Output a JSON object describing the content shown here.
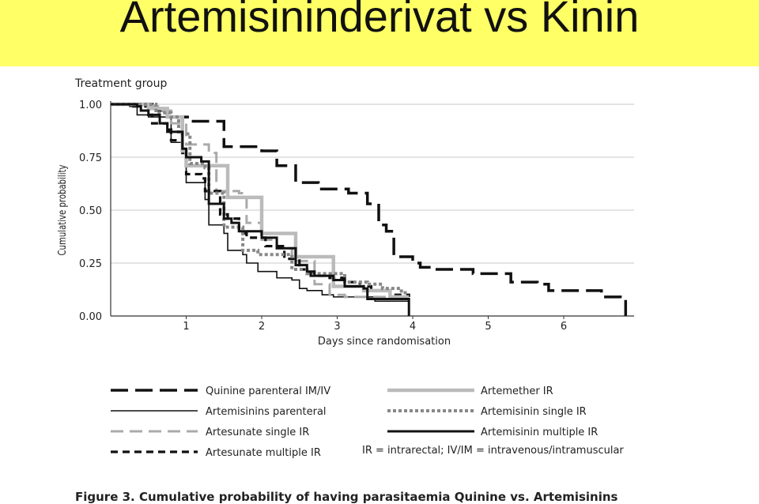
{
  "slide": {
    "title": "Artemisininderivat vs Kinin"
  },
  "chart_data": {
    "type": "line",
    "subtype": "step",
    "panel_label": "Treatment group",
    "ylabel": "Cumulative probability",
    "xlabel": "Days since randomisation",
    "xlim": [
      0,
      6.9
    ],
    "ylim": [
      0,
      1
    ],
    "x_ticks": [
      "1",
      "2",
      "3",
      "4",
      "5",
      "6"
    ],
    "y_ticks": [
      "0.00",
      "0.25",
      "0.50",
      "0.75",
      "1.00"
    ],
    "grid": "horizontal",
    "legend_position": "bottom",
    "series": [
      {
        "name": "Quinine parenteral IM/IV",
        "color": "#111111",
        "dash": "long-dash",
        "width": 3.5,
        "points": [
          [
            0,
            1
          ],
          [
            0.3,
            1
          ],
          [
            0.55,
            0.99
          ],
          [
            0.6,
            0.97
          ],
          [
            0.75,
            0.94
          ],
          [
            1.05,
            0.92
          ],
          [
            1.5,
            0.8
          ],
          [
            2.0,
            0.78
          ],
          [
            2.2,
            0.71
          ],
          [
            2.45,
            0.63
          ],
          [
            2.75,
            0.6
          ],
          [
            3.15,
            0.58
          ],
          [
            3.4,
            0.53
          ],
          [
            3.55,
            0.43
          ],
          [
            3.65,
            0.4
          ],
          [
            3.75,
            0.28
          ],
          [
            4.0,
            0.25
          ],
          [
            4.1,
            0.23
          ],
          [
            4.3,
            0.22
          ],
          [
            4.8,
            0.2
          ],
          [
            5.3,
            0.16
          ],
          [
            5.65,
            0.15
          ],
          [
            5.8,
            0.12
          ],
          [
            6.5,
            0.09
          ],
          [
            6.75,
            0.08
          ],
          [
            6.82,
            0.0
          ]
        ]
      },
      {
        "name": "Artemisinins parenteral",
        "color": "#111111",
        "dash": "solid",
        "width": 1.6,
        "points": [
          [
            0,
            1
          ],
          [
            0.25,
            0.99
          ],
          [
            0.35,
            0.95
          ],
          [
            0.5,
            0.94
          ],
          [
            0.8,
            0.82
          ],
          [
            0.95,
            0.78
          ],
          [
            1.0,
            0.63
          ],
          [
            1.25,
            0.55
          ],
          [
            1.3,
            0.43
          ],
          [
            1.5,
            0.39
          ],
          [
            1.55,
            0.31
          ],
          [
            1.75,
            0.29
          ],
          [
            1.8,
            0.25
          ],
          [
            1.95,
            0.21
          ],
          [
            2.2,
            0.18
          ],
          [
            2.4,
            0.17
          ],
          [
            2.5,
            0.13
          ],
          [
            2.6,
            0.12
          ],
          [
            2.8,
            0.1
          ],
          [
            2.95,
            0.09
          ],
          [
            3.5,
            0.07
          ],
          [
            3.95,
            0.07
          ],
          [
            3.95,
            0.0
          ]
        ]
      },
      {
        "name": "Artesunate single IR",
        "color": "#aaaaaa",
        "dash": "dash",
        "width": 3,
        "points": [
          [
            0,
            1
          ],
          [
            0.4,
            0.99
          ],
          [
            0.65,
            0.97
          ],
          [
            0.8,
            0.91
          ],
          [
            1.0,
            0.81
          ],
          [
            1.3,
            0.77
          ],
          [
            1.4,
            0.59
          ],
          [
            1.7,
            0.58
          ],
          [
            1.8,
            0.44
          ],
          [
            2.0,
            0.36
          ],
          [
            2.2,
            0.32
          ],
          [
            2.4,
            0.26
          ],
          [
            2.7,
            0.15
          ],
          [
            2.9,
            0.1
          ],
          [
            3.1,
            0.09
          ],
          [
            3.9,
            0.09
          ]
        ]
      },
      {
        "name": "Artesunate multiple IR",
        "color": "#111111",
        "dash": "short-dash",
        "width": 3.2,
        "points": [
          [
            0,
            1
          ],
          [
            0.3,
            0.99
          ],
          [
            0.5,
            0.95
          ],
          [
            0.55,
            0.91
          ],
          [
            0.75,
            0.88
          ],
          [
            0.8,
            0.83
          ],
          [
            0.95,
            0.77
          ],
          [
            1.0,
            0.67
          ],
          [
            1.2,
            0.65
          ],
          [
            1.25,
            0.59
          ],
          [
            1.45,
            0.48
          ],
          [
            1.55,
            0.46
          ],
          [
            1.7,
            0.39
          ],
          [
            1.8,
            0.37
          ],
          [
            2.0,
            0.37
          ],
          [
            2.05,
            0.33
          ],
          [
            2.3,
            0.27
          ],
          [
            2.5,
            0.22
          ],
          [
            2.65,
            0.19
          ],
          [
            2.9,
            0.18
          ],
          [
            3.1,
            0.16
          ],
          [
            3.3,
            0.14
          ],
          [
            3.45,
            0.12
          ],
          [
            3.7,
            0.1
          ],
          [
            3.95,
            0.09
          ]
        ]
      },
      {
        "name": "Artemether IR",
        "color": "#bbbbbb",
        "dash": "solid",
        "width": 4.5,
        "points": [
          [
            0,
            1
          ],
          [
            0.5,
            0.98
          ],
          [
            0.75,
            0.94
          ],
          [
            0.95,
            0.78
          ],
          [
            1.0,
            0.71
          ],
          [
            1.2,
            0.71
          ],
          [
            1.55,
            0.56
          ],
          [
            1.85,
            0.56
          ],
          [
            2.0,
            0.39
          ],
          [
            2.2,
            0.39
          ],
          [
            2.45,
            0.28
          ],
          [
            2.9,
            0.28
          ],
          [
            2.95,
            0.14
          ],
          [
            3.35,
            0.12
          ],
          [
            3.7,
            0.09
          ],
          [
            3.95,
            0.09
          ]
        ]
      },
      {
        "name": "Artemisinin single IR",
        "color": "#888888",
        "dash": "dotted",
        "width": 4,
        "points": [
          [
            0,
            1
          ],
          [
            0.6,
            0.96
          ],
          [
            0.8,
            0.94
          ],
          [
            0.9,
            0.86
          ],
          [
            1.05,
            0.72
          ],
          [
            1.25,
            0.7
          ],
          [
            1.3,
            0.58
          ],
          [
            1.5,
            0.42
          ],
          [
            1.75,
            0.31
          ],
          [
            1.95,
            0.29
          ],
          [
            2.4,
            0.22
          ],
          [
            2.6,
            0.2
          ],
          [
            3.1,
            0.16
          ],
          [
            3.4,
            0.15
          ],
          [
            3.6,
            0.13
          ],
          [
            3.85,
            0.11
          ],
          [
            3.95,
            0.11
          ]
        ]
      },
      {
        "name": "Artemisinin multiple IR",
        "color": "#111111",
        "dash": "solid",
        "width": 3,
        "points": [
          [
            0,
            1
          ],
          [
            0.35,
            0.99
          ],
          [
            0.4,
            0.97
          ],
          [
            0.5,
            0.95
          ],
          [
            0.65,
            0.91
          ],
          [
            0.75,
            0.87
          ],
          [
            0.95,
            0.79
          ],
          [
            1.0,
            0.75
          ],
          [
            1.2,
            0.73
          ],
          [
            1.3,
            0.53
          ],
          [
            1.5,
            0.46
          ],
          [
            1.6,
            0.44
          ],
          [
            1.7,
            0.4
          ],
          [
            2.0,
            0.37
          ],
          [
            2.2,
            0.32
          ],
          [
            2.45,
            0.24
          ],
          [
            2.6,
            0.21
          ],
          [
            2.7,
            0.19
          ],
          [
            2.95,
            0.17
          ],
          [
            3.1,
            0.14
          ],
          [
            3.35,
            0.13
          ],
          [
            3.4,
            0.08
          ],
          [
            3.95,
            0.08
          ],
          [
            3.95,
            0.0
          ]
        ]
      }
    ],
    "footnote": "IR = intrarectal; IV/IM = intravenous/intramuscular",
    "caption": "Figure 3. Cumulative probability of having parasitaemia Quinine vs. Artemisinins"
  }
}
